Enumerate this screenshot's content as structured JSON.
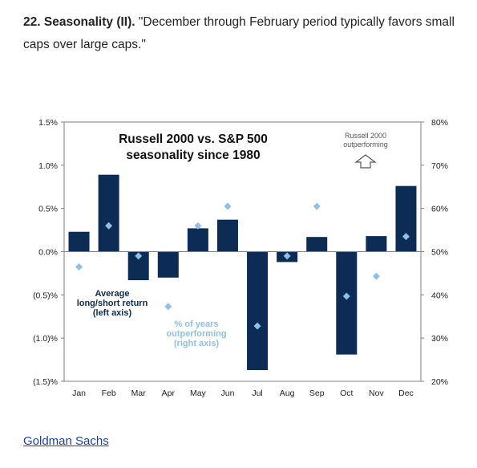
{
  "heading": {
    "number": "22.",
    "topic": "Seasonality (II).",
    "quote": "\"December through February period typically favors small caps over large caps.\""
  },
  "source_link": "Goldman Sachs",
  "colors": {
    "bar": "#0c2b55",
    "diamond": "#8fc0e6",
    "axis": "#7f7f7f"
  },
  "chart_data": {
    "type": "bar",
    "title": [
      "Russell 2000 vs. S&P 500",
      "seasonality since 1980"
    ],
    "categories": [
      "Jan",
      "Feb",
      "Mar",
      "Apr",
      "May",
      "Jun",
      "Jul",
      "Aug",
      "Sep",
      "Oct",
      "Nov",
      "Dec"
    ],
    "y_left": {
      "range": [
        -1.5,
        1.5
      ],
      "ticks": [
        1.5,
        1.0,
        0.5,
        0.0,
        -0.5,
        -1.0,
        -1.5
      ],
      "tick_labels": [
        "1.5%",
        "1.0%",
        "0.5%",
        "0.0%",
        "(0.5)%",
        "(1.0)%",
        "(1.5)%"
      ]
    },
    "y_right": {
      "range": [
        20,
        80
      ],
      "ticks": [
        80,
        70,
        60,
        50,
        40,
        30,
        20
      ],
      "tick_labels": [
        "80%",
        "70%",
        "60%",
        "50%",
        "40%",
        "30%",
        "20%"
      ]
    },
    "series": [
      {
        "name": [
          "Average",
          "long/short return",
          "(left axis)"
        ],
        "axis": "left",
        "kind": "bar",
        "values": [
          0.23,
          0.89,
          -0.33,
          -0.3,
          0.27,
          0.37,
          -1.37,
          -0.12,
          0.17,
          -1.19,
          0.18,
          0.76
        ]
      },
      {
        "name": [
          "% of years",
          "outperforming",
          "(right axis)"
        ],
        "axis": "right",
        "kind": "diamond",
        "values": [
          46.5,
          56,
          49,
          37.3,
          56,
          60.5,
          32.8,
          49,
          60.5,
          39.7,
          44.3,
          53.5
        ]
      }
    ],
    "annotation": {
      "text": [
        "Russell 2000",
        "outperforming"
      ],
      "icon": "up-arrow-icon"
    },
    "grid": false
  }
}
